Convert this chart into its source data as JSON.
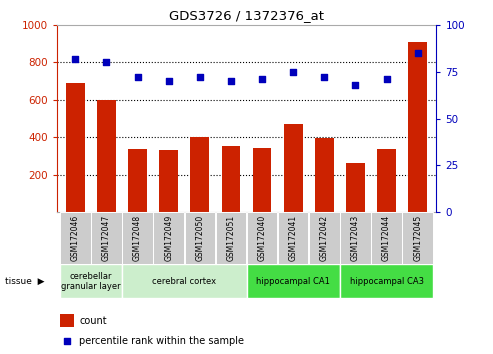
{
  "title": "GDS3726 / 1372376_at",
  "samples": [
    "GSM172046",
    "GSM172047",
    "GSM172048",
    "GSM172049",
    "GSM172050",
    "GSM172051",
    "GSM172040",
    "GSM172041",
    "GSM172042",
    "GSM172043",
    "GSM172044",
    "GSM172045"
  ],
  "counts": [
    690,
    600,
    340,
    330,
    400,
    355,
    345,
    470,
    395,
    265,
    340,
    910
  ],
  "percentiles": [
    82,
    80,
    72,
    70,
    72,
    70,
    71,
    75,
    72,
    68,
    71,
    85
  ],
  "ylim_left": [
    0,
    1000
  ],
  "ylim_right": [
    0,
    100
  ],
  "yticks_left": [
    200,
    400,
    600,
    800,
    1000
  ],
  "yticks_right": [
    0,
    25,
    50,
    75,
    100
  ],
  "bar_color": "#cc2200",
  "dot_color": "#0000bb",
  "tissue_groups": [
    {
      "label": "cerebellar\ngranular layer",
      "start": 0,
      "end": 2,
      "color": "#cceecc"
    },
    {
      "label": "cerebral cortex",
      "start": 2,
      "end": 6,
      "color": "#cceecc"
    },
    {
      "label": "hippocampal CA1",
      "start": 6,
      "end": 9,
      "color": "#44dd44"
    },
    {
      "label": "hippocampal CA3",
      "start": 9,
      "end": 12,
      "color": "#44dd44"
    }
  ],
  "legend_count_label": "count",
  "legend_pct_label": "percentile rank within the sample",
  "left_axis_color": "#cc2200",
  "right_axis_color": "#0000bb",
  "label_bg_color": "#cccccc"
}
